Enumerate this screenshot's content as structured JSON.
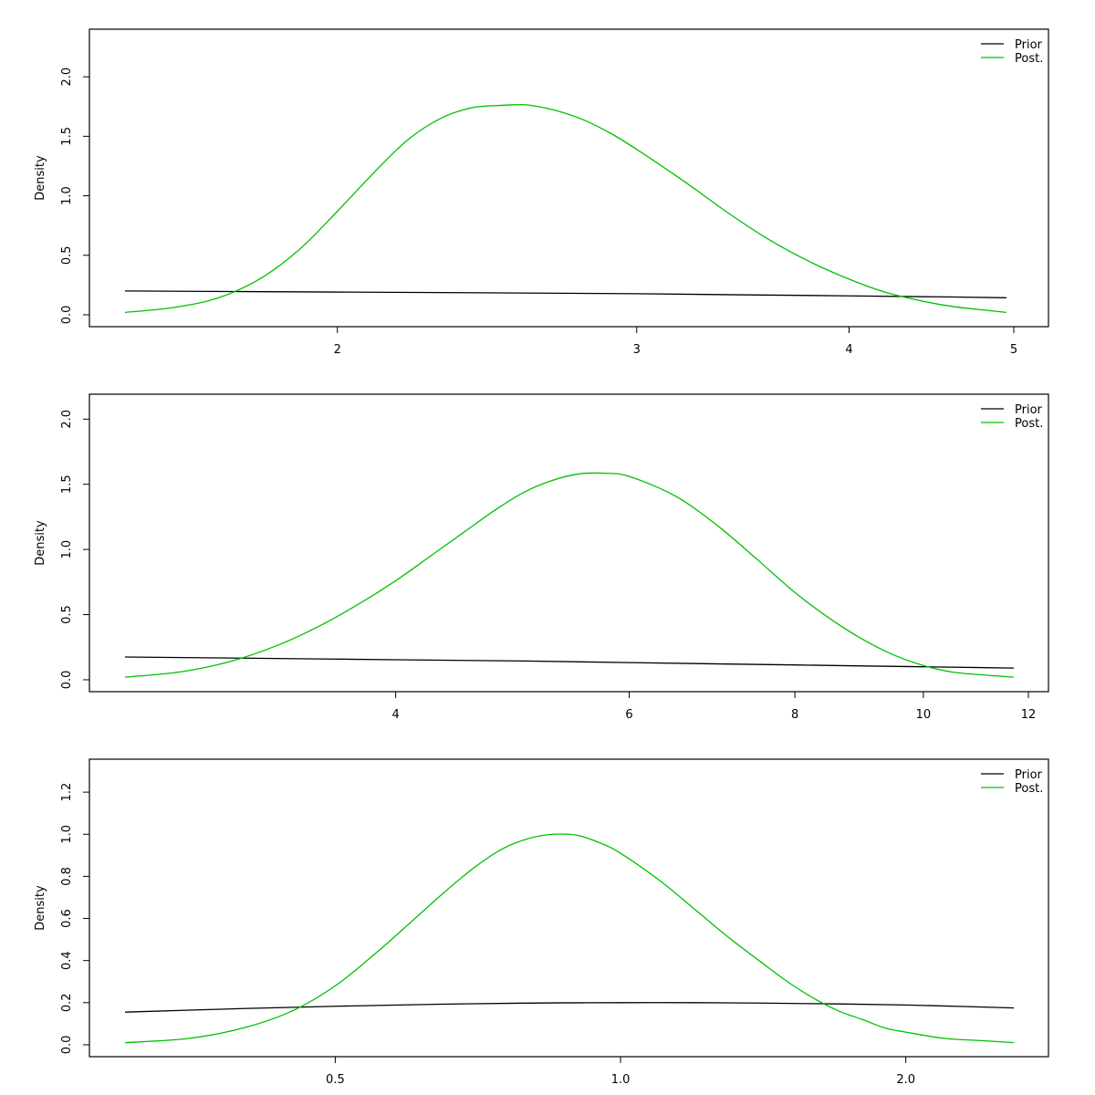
{
  "colors": {
    "prior": "#000000",
    "posterior": "#00c000",
    "frame": "#000000",
    "background": "#ffffff"
  },
  "chart_data": [
    {
      "type": "line",
      "x_scale": "log",
      "ylabel": "Density",
      "xlim": [
        1.5,
        5
      ],
      "ylim": [
        0,
        2.3
      ],
      "x_ticks": [
        2,
        3,
        4,
        5
      ],
      "x_tick_labels": [
        "2",
        "3",
        "4",
        "5"
      ],
      "y_ticks": [
        0,
        0.5,
        1,
        1.5,
        2
      ],
      "y_tick_labels": [
        "0.0",
        "0.5",
        "1.0",
        "1.5",
        "2.0"
      ],
      "legend": {
        "position": "top-right",
        "entries": [
          "Prior",
          "Post."
        ]
      },
      "series": [
        {
          "name": "Prior",
          "x": [
            1.5,
            2,
            2.5,
            3,
            3.5,
            4,
            4.5,
            4.95
          ],
          "y": [
            0.2,
            0.191,
            0.184,
            0.177,
            0.167,
            0.159,
            0.151,
            0.143
          ]
        },
        {
          "name": "Post.",
          "x": [
            1.5,
            1.6,
            1.7,
            1.8,
            1.9,
            2.0,
            2.1,
            2.2,
            2.3,
            2.4,
            2.5,
            2.55,
            2.6,
            2.7,
            2.8,
            2.9,
            3.0,
            3.2,
            3.4,
            3.6,
            3.8,
            4.0,
            4.2,
            4.4,
            4.6,
            4.8,
            4.95
          ],
          "y": [
            0.02,
            0.06,
            0.14,
            0.3,
            0.55,
            0.87,
            1.19,
            1.47,
            1.65,
            1.74,
            1.76,
            1.765,
            1.76,
            1.71,
            1.63,
            1.52,
            1.39,
            1.12,
            0.85,
            0.62,
            0.44,
            0.3,
            0.19,
            0.12,
            0.07,
            0.04,
            0.02
          ]
        }
      ]
    },
    {
      "type": "line",
      "x_scale": "log",
      "ylabel": "Density",
      "xlim": [
        2.5,
        11.7
      ],
      "ylim": [
        0,
        2.1
      ],
      "x_ticks": [
        4,
        6,
        8,
        10,
        12
      ],
      "x_tick_labels": [
        "4",
        "6",
        "8",
        "10",
        "12"
      ],
      "y_ticks": [
        0,
        0.5,
        1,
        1.5,
        2
      ],
      "y_tick_labels": [
        "0.0",
        "0.5",
        "1.0",
        "1.5",
        "2.0"
      ],
      "legend": {
        "position": "top-right",
        "entries": [
          "Prior",
          "Post."
        ]
      },
      "series": [
        {
          "name": "Prior",
          "x": [
            2.5,
            3,
            4,
            5,
            6,
            7,
            8,
            9,
            10,
            11,
            11.7
          ],
          "y": [
            0.175,
            0.167,
            0.154,
            0.144,
            0.132,
            0.122,
            0.114,
            0.106,
            0.1,
            0.094,
            0.09
          ]
        },
        {
          "name": "Post.",
          "x": [
            2.5,
            2.75,
            3.0,
            3.25,
            3.5,
            3.75,
            4.0,
            4.25,
            4.5,
            4.75,
            5.0,
            5.25,
            5.5,
            5.75,
            6.0,
            6.5,
            7.0,
            7.5,
            8.0,
            8.5,
            9.0,
            9.5,
            10.0,
            10.5,
            11.0,
            11.7
          ],
          "y": [
            0.02,
            0.06,
            0.14,
            0.26,
            0.41,
            0.58,
            0.76,
            0.95,
            1.13,
            1.3,
            1.44,
            1.53,
            1.58,
            1.585,
            1.56,
            1.41,
            1.18,
            0.92,
            0.67,
            0.47,
            0.31,
            0.19,
            0.11,
            0.06,
            0.04,
            0.02
          ]
        }
      ]
    },
    {
      "type": "line",
      "x_scale": "log",
      "ylabel": "Density",
      "xlim": [
        0.3,
        2.6
      ],
      "ylim": [
        0,
        1.3
      ],
      "x_ticks": [
        0.5,
        1.0,
        2.0
      ],
      "x_tick_labels": [
        "0.5",
        "1.0",
        "2.0"
      ],
      "y_ticks": [
        0,
        0.2,
        0.4,
        0.6,
        0.8,
        1.0,
        1.2
      ],
      "y_tick_labels": [
        "0.0",
        "0.2",
        "0.4",
        "0.6",
        "0.8",
        "1.0",
        "1.2"
      ],
      "legend": {
        "position": "top-right",
        "entries": [
          "Prior",
          "Post."
        ]
      },
      "series": [
        {
          "name": "Prior",
          "x": [
            0.3,
            0.4,
            0.5,
            0.6,
            0.7,
            0.85,
            1.0,
            1.2,
            1.4,
            1.7,
            2.0,
            2.3,
            2.6
          ],
          "y": [
            0.155,
            0.172,
            0.183,
            0.19,
            0.195,
            0.199,
            0.2,
            0.2,
            0.198,
            0.194,
            0.189,
            0.182,
            0.175
          ]
        },
        {
          "name": "Post.",
          "x": [
            0.3,
            0.35,
            0.4,
            0.45,
            0.5,
            0.55,
            0.6,
            0.65,
            0.7,
            0.75,
            0.8,
            0.85,
            0.9,
            0.95,
            1.0,
            1.1,
            1.2,
            1.3,
            1.4,
            1.5,
            1.6,
            1.7,
            1.8,
            1.9,
            2.0,
            2.2,
            2.4,
            2.6
          ],
          "y": [
            0.01,
            0.03,
            0.08,
            0.16,
            0.28,
            0.43,
            0.58,
            0.72,
            0.84,
            0.93,
            0.98,
            1.0,
            0.995,
            0.96,
            0.91,
            0.78,
            0.64,
            0.51,
            0.4,
            0.3,
            0.22,
            0.16,
            0.12,
            0.08,
            0.06,
            0.03,
            0.02,
            0.01
          ]
        }
      ]
    }
  ]
}
